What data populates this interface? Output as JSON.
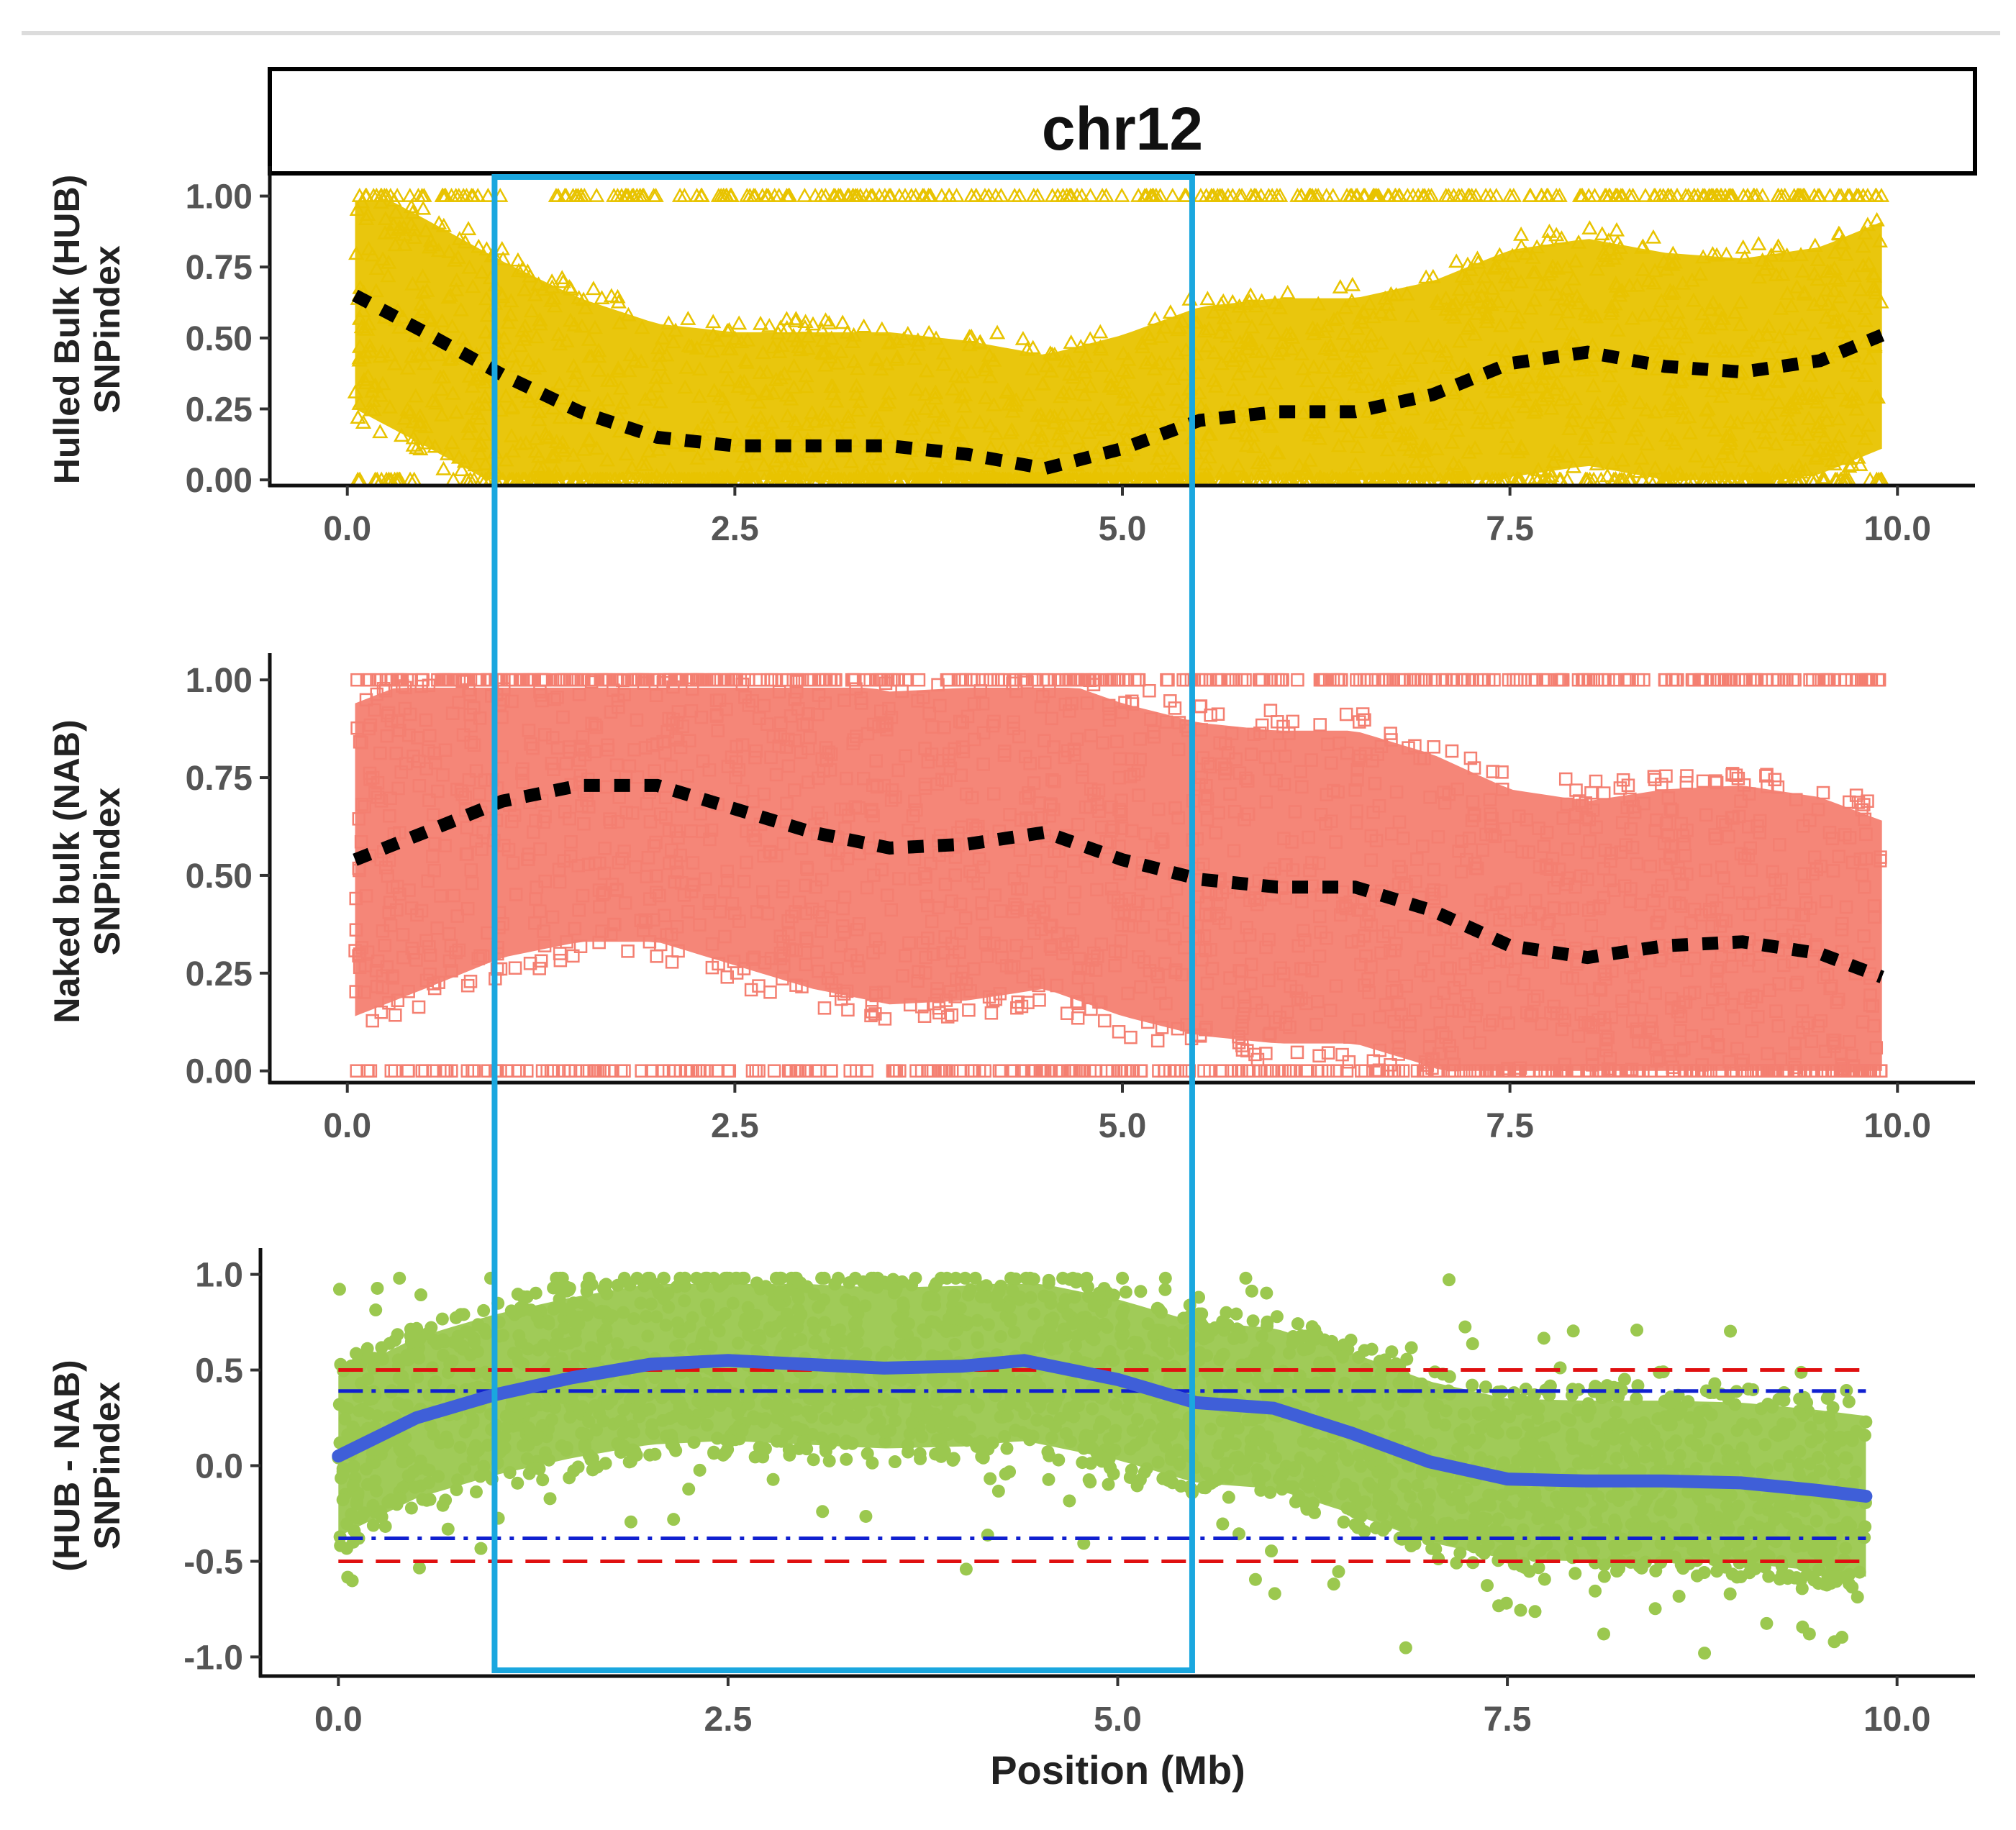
{
  "chart_data": [
    {
      "type": "scatter",
      "facet_title": "chr12",
      "ylabel_line1": "Hulled Bulk (HUB)",
      "ylabel_line2": "SNPindex",
      "xlabel": "",
      "xlim": [
        -0.5,
        10.5
      ],
      "ylim": [
        -0.02,
        1.08
      ],
      "xticks": [
        0.0,
        2.5,
        5.0,
        7.5,
        10.0
      ],
      "xtick_labels": [
        "0.0",
        "2.5",
        "5.0",
        "7.5",
        "10.0"
      ],
      "yticks": [
        0.0,
        0.25,
        0.5,
        0.75,
        1.0
      ],
      "ytick_labels": [
        "0.00",
        "0.25",
        "0.50",
        "0.75",
        "1.00"
      ],
      "marker": "triangle",
      "point_color": "#e8c300",
      "trend_color": "#000000",
      "trend": {
        "x": [
          0.05,
          0.5,
          1.0,
          1.5,
          2.0,
          2.5,
          3.0,
          3.5,
          4.0,
          4.5,
          5.0,
          5.5,
          6.0,
          6.5,
          7.0,
          7.5,
          8.0,
          8.5,
          9.0,
          9.5,
          9.9
        ],
        "y": [
          0.65,
          0.52,
          0.37,
          0.24,
          0.15,
          0.12,
          0.12,
          0.12,
          0.09,
          0.04,
          0.11,
          0.21,
          0.24,
          0.24,
          0.3,
          0.41,
          0.45,
          0.4,
          0.38,
          0.42,
          0.51
        ]
      }
    },
    {
      "type": "scatter",
      "ylabel_line1": "Naked bulk (NAB)",
      "ylabel_line2": "SNPindex",
      "xlabel": "",
      "xlim": [
        -0.5,
        10.5
      ],
      "ylim": [
        -0.03,
        1.05
      ],
      "xticks": [
        0.0,
        2.5,
        5.0,
        7.5,
        10.0
      ],
      "xtick_labels": [
        "0.0",
        "2.5",
        "5.0",
        "7.5",
        "10.0"
      ],
      "yticks": [
        0.0,
        0.25,
        0.5,
        0.75,
        1.0
      ],
      "ytick_labels": [
        "0.00",
        "0.25",
        "0.50",
        "0.75",
        "1.00"
      ],
      "marker": "square",
      "point_color": "#f47f71",
      "trend_color": "#000000",
      "trend": {
        "x": [
          0.05,
          0.5,
          1.0,
          1.5,
          2.0,
          2.5,
          3.0,
          3.5,
          4.0,
          4.5,
          5.0,
          5.5,
          6.0,
          6.5,
          7.0,
          7.5,
          8.0,
          8.5,
          9.0,
          9.5,
          9.9
        ],
        "y": [
          0.54,
          0.61,
          0.69,
          0.73,
          0.73,
          0.67,
          0.61,
          0.57,
          0.58,
          0.61,
          0.54,
          0.49,
          0.47,
          0.47,
          0.41,
          0.32,
          0.29,
          0.32,
          0.33,
          0.3,
          0.24
        ]
      }
    },
    {
      "type": "scatter",
      "ylabel_line1": "(HUB - NAB)",
      "ylabel_line2": "SNPindex",
      "xlabel": "Position (Mb)",
      "xlim": [
        -0.5,
        10.5
      ],
      "ylim": [
        -1.1,
        1.1
      ],
      "xticks": [
        0.0,
        2.5,
        5.0,
        7.5,
        10.0
      ],
      "xtick_labels": [
        "0.0",
        "2.5",
        "5.0",
        "7.5",
        "10.0"
      ],
      "yticks": [
        -1.0,
        -0.5,
        0.0,
        0.5,
        1.0
      ],
      "ytick_labels": [
        "-1.0",
        "-0.5",
        "0.0",
        "0.5",
        "1.0"
      ],
      "marker": "circle",
      "point_color": "#9bc84f",
      "trend_color": "#3f5fd8",
      "trend": {
        "x": [
          0.0,
          0.5,
          1.0,
          1.5,
          2.0,
          2.5,
          3.0,
          3.5,
          4.0,
          4.4,
          5.0,
          5.5,
          6.0,
          6.5,
          7.0,
          7.5,
          8.0,
          8.5,
          9.0,
          9.5,
          9.8
        ],
        "y": [
          0.05,
          0.25,
          0.37,
          0.46,
          0.53,
          0.55,
          0.53,
          0.51,
          0.52,
          0.55,
          0.45,
          0.33,
          0.3,
          0.17,
          0.02,
          -0.07,
          -0.08,
          -0.08,
          -0.09,
          -0.13,
          -0.16
        ]
      },
      "threshold_99": {
        "color": "#e01010",
        "upper": 0.5,
        "lower": -0.5
      },
      "threshold_95": {
        "color": "#1020d0",
        "upper": 0.39,
        "lower": -0.38
      }
    }
  ],
  "highlight": {
    "x_from": 0.95,
    "x_to": 5.45,
    "color": "#1aa7df"
  }
}
